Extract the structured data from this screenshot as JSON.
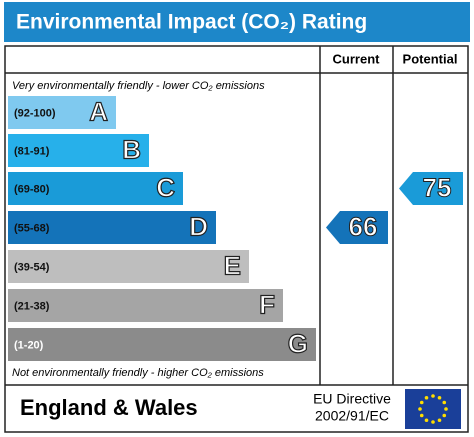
{
  "title": "Environmental Impact (CO₂) Rating",
  "columns": {
    "current": "Current",
    "potential": "Potential"
  },
  "top_note": "Very environmentally friendly - lower CO₂ emissions",
  "bottom_note": "Not environmentally friendly - higher CO₂ emissions",
  "bands": [
    {
      "range": "(92-100)",
      "letter": "A",
      "color": "#7fc9ef"
    },
    {
      "range": "(81-91)",
      "letter": "B",
      "color": "#27b0ea"
    },
    {
      "range": "(69-80)",
      "letter": "C",
      "color": "#1a9bd8"
    },
    {
      "range": "(55-68)",
      "letter": "D",
      "color": "#1473b9"
    },
    {
      "range": "(39-54)",
      "letter": "E",
      "color": "#bebebe"
    },
    {
      "range": "(21-38)",
      "letter": "F",
      "color": "#a5a5a5"
    },
    {
      "range": "(1-20)",
      "letter": "G",
      "color": "#8b8b8b"
    }
  ],
  "current": 66,
  "potential": 75,
  "footer": {
    "region": "England & Wales",
    "directive_line1": "EU Directive",
    "directive_line2": "2002/91/EC"
  }
}
